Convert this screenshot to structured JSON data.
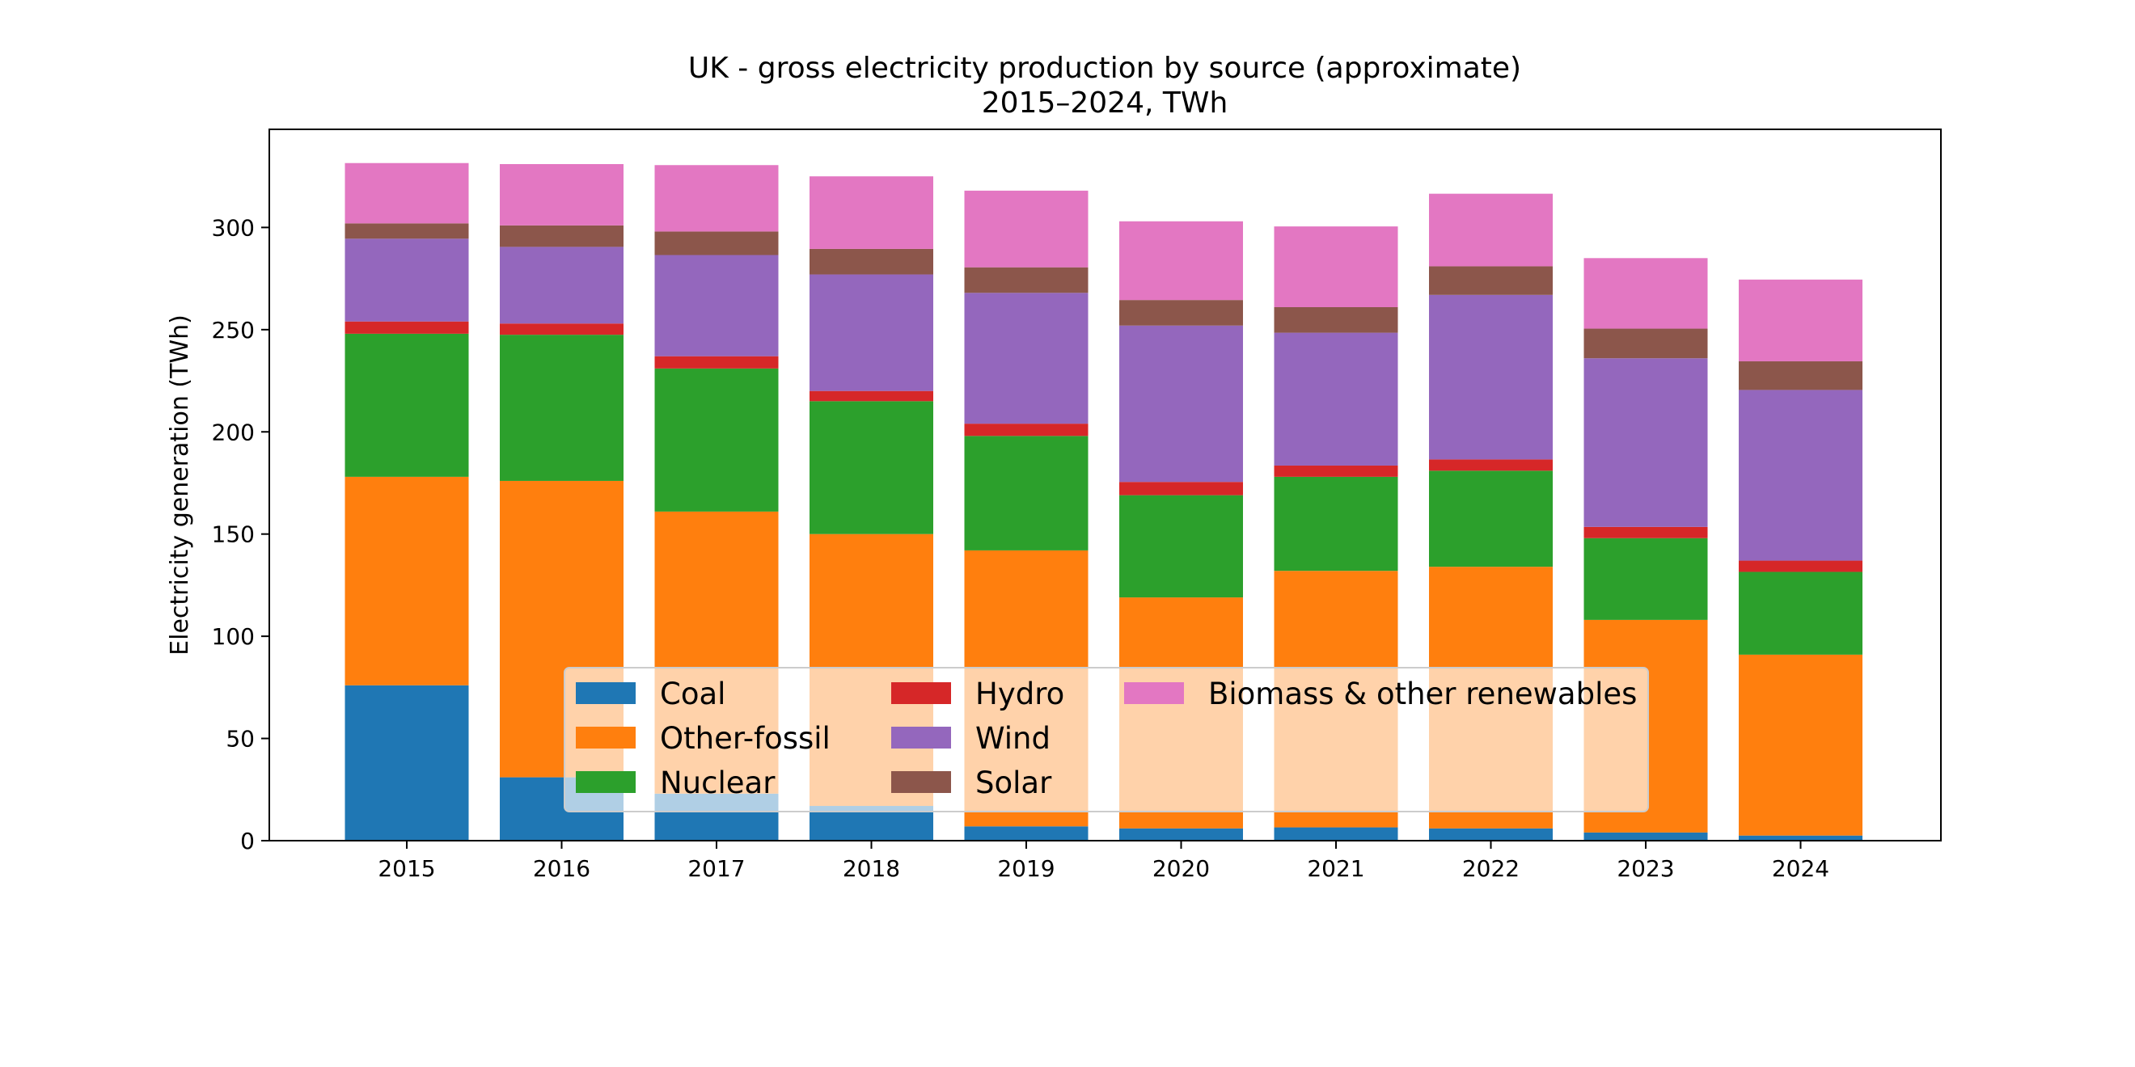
{
  "chart_data": {
    "type": "bar",
    "stacked": true,
    "title": "UK - gross electricity production by source (approximate)",
    "subtitle": "2015–2024, TWh",
    "xlabel": "",
    "ylabel": "Electricity generation (TWh)",
    "ylim": [
      0,
      348
    ],
    "yticks": [
      0,
      50,
      100,
      150,
      200,
      250,
      300
    ],
    "categories": [
      "2015",
      "2016",
      "2017",
      "2018",
      "2019",
      "2020",
      "2021",
      "2022",
      "2023",
      "2024"
    ],
    "series": [
      {
        "name": "Coal",
        "color": "#1f77b4",
        "values": [
          76,
          31,
          23,
          17,
          7,
          6,
          6.5,
          6,
          4,
          2.5
        ]
      },
      {
        "name": "Other-fossil",
        "color": "#ff7f0e",
        "values": [
          102,
          145,
          138,
          133,
          135,
          113,
          125.5,
          128,
          104,
          88.5
        ]
      },
      {
        "name": "Nuclear",
        "color": "#2ca02c",
        "values": [
          70,
          71.5,
          70,
          65,
          56,
          50,
          46,
          47,
          40,
          40.5
        ]
      },
      {
        "name": "Hydro",
        "color": "#d62728",
        "values": [
          6,
          5.5,
          6,
          5,
          6,
          6.5,
          5.5,
          5.5,
          5.5,
          5.5
        ]
      },
      {
        "name": "Wind",
        "color": "#9467bd",
        "values": [
          40.5,
          37.5,
          49.5,
          57,
          64,
          76.5,
          65,
          80.5,
          82.5,
          83.5
        ]
      },
      {
        "name": "Solar",
        "color": "#8c564b",
        "values": [
          7.5,
          10.5,
          11.5,
          12.5,
          12.5,
          12.5,
          12.5,
          14,
          14.5,
          14
        ]
      },
      {
        "name": "Biomass & other renewables",
        "color": "#e377c2",
        "values": [
          29.5,
          30,
          32.5,
          35.5,
          37.5,
          38.5,
          39.5,
          35.5,
          34.5,
          40
        ]
      }
    ],
    "legend": {
      "position": "lower center",
      "ncol": 3
    }
  }
}
